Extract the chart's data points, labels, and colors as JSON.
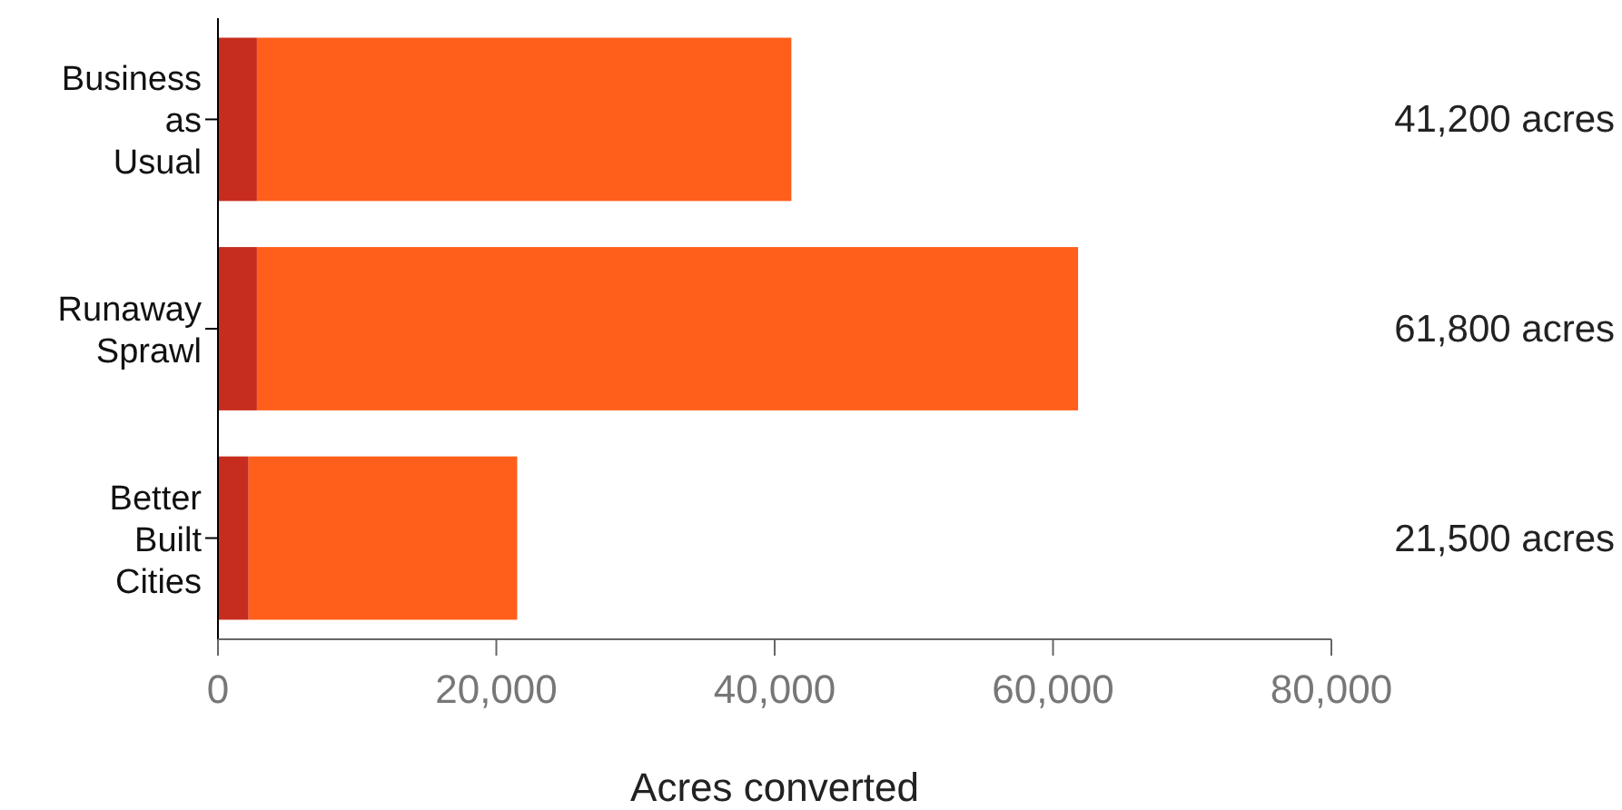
{
  "chart_data": {
    "type": "bar",
    "orientation": "horizontal",
    "stacked": true,
    "xlabel": "Acres converted",
    "categories": [
      "Business as Usual",
      "Runaway Sprawl",
      "Better Built Cities"
    ],
    "series": [
      {
        "color": "#c62d1f",
        "values": [
          2800,
          2800,
          2200
        ]
      },
      {
        "color": "#ff5f1a",
        "values": [
          38400,
          59000,
          19300
        ]
      }
    ],
    "annotations": [
      "41,200 acres",
      "61,800 acres",
      "21,500 acres"
    ],
    "xlim": [
      0,
      80000
    ],
    "xticks": [
      {
        "value": 0,
        "label": "0"
      },
      {
        "value": 20000,
        "label": "20,000"
      },
      {
        "value": 40000,
        "label": "40,000"
      },
      {
        "value": 60000,
        "label": "60,000"
      },
      {
        "value": 80000,
        "label": "80,000"
      }
    ],
    "grid": false
  }
}
